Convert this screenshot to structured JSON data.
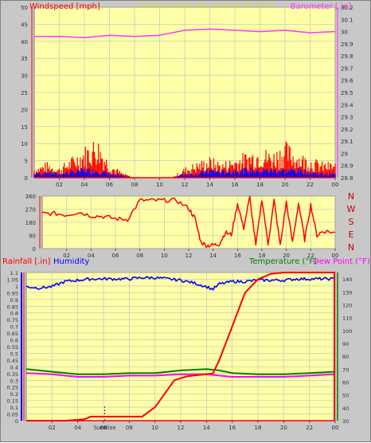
{
  "top_title": "24 hour graph day   August 08 2021",
  "panels": {
    "wind": {
      "left_label": "Windspeed [mph]",
      "right_label": "Barometer [.in]"
    },
    "direction": {
      "compass": [
        "N",
        "W",
        "S",
        "E",
        "N"
      ]
    },
    "weather": {
      "rain_label": "Rainfall [.in]",
      "humidity_label": "Humidity",
      "temp_label": "Temperature (°F)",
      "dew_label": "Dew Point (°F)",
      "sunrise_label": "SunRise"
    }
  },
  "colors": {
    "plot_bg": "#ffffa8",
    "frame_bg": "#c8c8c8",
    "grid": "#bdbdbd",
    "windspeed": "#ff0000",
    "wind_gust": "#0000ff",
    "wind_alt": "#00aa00",
    "barometer": "#ff33ff",
    "direction": "#ff0000",
    "rain": "#ff0000",
    "humidity": "#0000ff",
    "temperature": "#008000",
    "dew_point": "#ff00ff",
    "title_text": "#e0e000"
  },
  "chart_data": [
    {
      "type": "line",
      "id": "wind",
      "x_ticks": [
        "02",
        "04",
        "06",
        "08",
        "10",
        "12",
        "14",
        "16",
        "18",
        "20",
        "22",
        "00"
      ],
      "y_left": {
        "ticks": [
          "0",
          "5",
          "10",
          "15",
          "20",
          "25",
          "30",
          "35",
          "40",
          "45",
          "50"
        ],
        "range": [
          0,
          50
        ]
      },
      "y_right": {
        "ticks": [
          "28.8",
          "28.9",
          "29",
          "29.1",
          "29.2",
          "29.3",
          "29.4",
          "29.5",
          "29.6",
          "29.7",
          "29.8",
          "29.9",
          "30",
          "30.1",
          "30.2"
        ],
        "range": [
          28.8,
          30.2
        ]
      },
      "grid": true,
      "series": [
        {
          "values": [
            [
              0,
              2
            ],
            [
              1,
              3
            ],
            [
              2,
              2
            ],
            [
              3,
              4
            ],
            [
              4,
              6
            ],
            [
              5,
              8
            ],
            [
              6,
              3
            ],
            [
              7,
              1
            ],
            [
              8,
              0
            ],
            [
              9,
              0
            ],
            [
              10,
              0
            ],
            [
              11,
              0
            ],
            [
              12,
              2
            ],
            [
              13,
              3
            ],
            [
              14,
              4
            ],
            [
              15,
              3
            ],
            [
              16,
              4
            ],
            [
              17,
              5
            ],
            [
              18,
              6
            ],
            [
              19,
              5
            ],
            [
              20,
              7
            ],
            [
              21,
              5
            ],
            [
              22,
              4
            ],
            [
              23,
              3
            ],
            [
              24,
              3
            ]
          ]
        },
        {
          "values": [
            [
              0,
              1
            ],
            [
              1,
              1.5
            ],
            [
              2,
              1
            ],
            [
              3,
              1.5
            ],
            [
              4,
              2
            ],
            [
              5,
              2
            ],
            [
              6,
              1
            ],
            [
              7,
              0.5
            ],
            [
              8,
              0
            ],
            [
              9,
              0
            ],
            [
              10,
              0
            ],
            [
              11,
              0
            ],
            [
              12,
              1
            ],
            [
              13,
              1
            ],
            [
              14,
              2
            ],
            [
              15,
              1.5
            ],
            [
              16,
              2
            ],
            [
              17,
              2
            ],
            [
              18,
              2
            ],
            [
              19,
              2
            ],
            [
              20,
              2
            ],
            [
              21,
              2
            ],
            [
              22,
              1.5
            ],
            [
              23,
              1
            ],
            [
              24,
              1
            ]
          ]
        },
        {
          "values": [
            [
              0,
              29.96
            ],
            [
              2,
              29.96
            ],
            [
              4,
              29.95
            ],
            [
              6,
              29.97
            ],
            [
              8,
              29.96
            ],
            [
              10,
              29.97
            ],
            [
              12,
              30.01
            ],
            [
              14,
              30.02
            ],
            [
              16,
              30.01
            ],
            [
              18,
              30.0
            ],
            [
              20,
              30.01
            ],
            [
              22,
              29.99
            ],
            [
              24,
              30.0
            ]
          ]
        }
      ]
    },
    {
      "type": "line",
      "id": "direction",
      "x_ticks": [
        "02",
        "04",
        "06",
        "08",
        "10",
        "12",
        "14",
        "16",
        "18",
        "20",
        "22",
        "00"
      ],
      "y_left": {
        "ticks": [
          "0",
          "90",
          "180",
          "270",
          "360"
        ],
        "range": [
          0,
          360
        ]
      },
      "grid": true,
      "series": [
        {
          "values": [
            [
              0,
              240
            ],
            [
              1,
              240
            ],
            [
              2,
              230
            ],
            [
              3,
              250
            ],
            [
              4,
              225
            ],
            [
              5,
              220
            ],
            [
              6,
              205
            ],
            [
              7,
              200
            ],
            [
              8,
              330
            ],
            [
              9,
              330
            ],
            [
              10,
              330
            ],
            [
              11,
              330
            ],
            [
              12,
              275
            ],
            [
              12.5,
              210
            ],
            [
              13,
              45
            ],
            [
              13.5,
              20
            ],
            [
              14,
              25
            ],
            [
              14.5,
              30
            ],
            [
              15,
              110
            ],
            [
              15.5,
              95
            ],
            [
              16,
              310
            ],
            [
              16.5,
              140
            ],
            [
              17,
              350
            ],
            [
              17.5,
              20
            ],
            [
              18,
              340
            ],
            [
              18.5,
              30
            ],
            [
              19,
              330
            ],
            [
              19.5,
              20
            ],
            [
              20,
              320
            ],
            [
              20.5,
              40
            ],
            [
              21,
              310
            ],
            [
              21.5,
              60
            ],
            [
              22,
              300
            ],
            [
              22.5,
              90
            ],
            [
              23,
              120
            ],
            [
              24,
              110
            ]
          ]
        }
      ]
    },
    {
      "type": "line",
      "id": "weather",
      "x_ticks": [
        "02",
        "04",
        "06",
        "08",
        "10",
        "12",
        "14",
        "16",
        "18",
        "20",
        "22",
        "00"
      ],
      "y_left": {
        "ticks": [
          "0",
          "0.05",
          "0.1",
          "0.15",
          "0.2",
          "0.25",
          "0.3",
          "0.35",
          "0.4",
          "0.45",
          "0.5",
          "0.55",
          "0.6",
          "0.65",
          "0.7",
          "0.75",
          "0.8",
          "0.85",
          "0.9",
          "0.95",
          "1",
          "1.05",
          "1.1"
        ],
        "range": [
          0,
          1.1
        ]
      },
      "y_right": {
        "ticks": [
          "30",
          "40",
          "50",
          "60",
          "70",
          "80",
          "90",
          "100",
          "110",
          "120",
          "130",
          "140"
        ],
        "range": [
          30,
          145
        ]
      },
      "grid": true,
      "series": [
        {
          "values": [
            [
              0,
              0
            ],
            [
              3,
              0
            ],
            [
              4.5,
              0.01
            ],
            [
              5,
              0.03
            ],
            [
              9,
              0.03
            ],
            [
              10,
              0.1
            ],
            [
              11.5,
              0.3
            ],
            [
              12.5,
              0.33
            ],
            [
              14.5,
              0.35
            ],
            [
              15,
              0.45
            ],
            [
              16,
              0.7
            ],
            [
              17,
              0.95
            ],
            [
              18,
              1.05
            ],
            [
              19,
              1.09
            ],
            [
              20,
              1.1
            ],
            [
              21,
              1.1
            ],
            [
              23,
              1.1
            ],
            [
              24,
              1.1
            ]
          ]
        },
        {
          "values": [
            [
              0,
              134
            ],
            [
              1,
              133
            ],
            [
              2,
              134
            ],
            [
              3,
              138
            ],
            [
              4,
              139
            ],
            [
              5,
              140
            ],
            [
              6,
              140
            ],
            [
              7,
              140
            ],
            [
              8,
              140
            ],
            [
              9,
              141
            ],
            [
              10,
              141
            ],
            [
              11,
              140
            ],
            [
              12,
              139
            ],
            [
              13,
              137
            ],
            [
              14,
              134
            ],
            [
              14.5,
              132
            ],
            [
              15,
              136
            ],
            [
              16,
              138
            ],
            [
              17,
              138
            ],
            [
              18,
              139
            ],
            [
              19,
              139
            ],
            [
              20,
              139
            ],
            [
              21,
              140
            ],
            [
              22,
              140
            ],
            [
              23,
              140
            ],
            [
              24,
              140
            ]
          ]
        },
        {
          "values": [
            [
              0,
              70
            ],
            [
              2,
              68
            ],
            [
              4,
              66
            ],
            [
              6,
              66
            ],
            [
              8,
              67
            ],
            [
              10,
              67
            ],
            [
              12,
              69
            ],
            [
              14,
              70
            ],
            [
              15,
              69
            ],
            [
              16,
              67
            ],
            [
              18,
              66
            ],
            [
              20,
              66
            ],
            [
              22,
              67
            ],
            [
              24,
              68
            ]
          ]
        },
        {
          "values": [
            [
              0,
              67
            ],
            [
              2,
              66
            ],
            [
              4,
              64
            ],
            [
              6,
              64
            ],
            [
              8,
              65
            ],
            [
              10,
              65
            ],
            [
              12,
              66
            ],
            [
              14,
              66
            ],
            [
              15,
              65
            ],
            [
              16,
              64
            ],
            [
              18,
              64
            ],
            [
              20,
              64
            ],
            [
              22,
              65
            ],
            [
              24,
              66
            ]
          ]
        }
      ]
    }
  ]
}
